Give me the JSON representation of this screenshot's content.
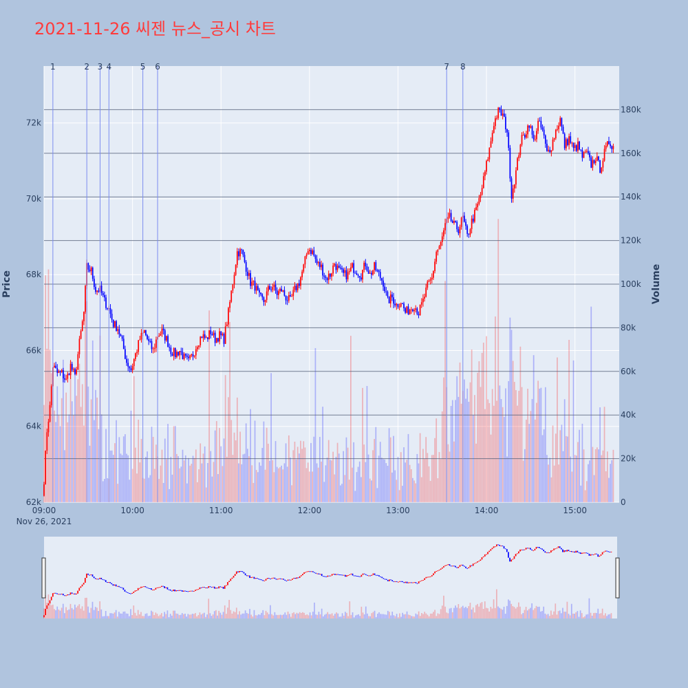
{
  "title": "2021-11-26 씨젠 뉴스_공시 차트",
  "colors": {
    "up": "#ff0000",
    "down": "#0000ff",
    "background": "#b0c4de",
    "plot": "#e5ecf6",
    "news_line": "#7b8cf0",
    "hline": "#55607a"
  },
  "chart_data": {
    "type": "candlestick",
    "date_label": "Nov 26, 2021",
    "x_ticks": [
      "09:00",
      "10:00",
      "11:00",
      "12:00",
      "13:00",
      "14:00",
      "15:00"
    ],
    "x_range": [
      "09:00",
      "15:30"
    ],
    "y_label": "Price",
    "y_ticks": [
      "62k",
      "64k",
      "66k",
      "68k",
      "70k",
      "72k"
    ],
    "y_range": [
      62000,
      73500
    ],
    "y2_label": "Volume",
    "y2_ticks": [
      "0",
      "20k",
      "40k",
      "60k",
      "80k",
      "100k",
      "120k",
      "140k",
      "160k",
      "180k"
    ],
    "y2_range": [
      0,
      200000
    ],
    "news_markers": [
      {
        "label": "1",
        "time": "09:06"
      },
      {
        "label": "2",
        "time": "09:29"
      },
      {
        "label": "3",
        "time": "09:38"
      },
      {
        "label": "4",
        "time": "09:44"
      },
      {
        "label": "5",
        "time": "10:07"
      },
      {
        "label": "6",
        "time": "10:17"
      },
      {
        "label": "7",
        "time": "13:33"
      },
      {
        "label": "8",
        "time": "13:44"
      }
    ],
    "volume_hlines": [
      20000,
      40000,
      60000,
      80000,
      100000,
      120000,
      140000,
      160000,
      180000
    ],
    "price_path": [
      [
        "09:00",
        62600
      ],
      [
        "09:02",
        63900
      ],
      [
        "09:04",
        64500
      ],
      [
        "09:06",
        65600
      ],
      [
        "09:09",
        65400
      ],
      [
        "09:12",
        65400
      ],
      [
        "09:15",
        65200
      ],
      [
        "09:18",
        65600
      ],
      [
        "09:21",
        65300
      ],
      [
        "09:24",
        66200
      ],
      [
        "09:27",
        67000
      ],
      [
        "09:29",
        68200
      ],
      [
        "09:32",
        68100
      ],
      [
        "09:35",
        67600
      ],
      [
        "09:38",
        67600
      ],
      [
        "09:41",
        67300
      ],
      [
        "09:44",
        67100
      ],
      [
        "09:47",
        66700
      ],
      [
        "09:50",
        66600
      ],
      [
        "09:53",
        66200
      ],
      [
        "09:56",
        65700
      ],
      [
        "09:59",
        65500
      ],
      [
        "10:02",
        65900
      ],
      [
        "10:05",
        66300
      ],
      [
        "10:08",
        66500
      ],
      [
        "10:11",
        66200
      ],
      [
        "10:14",
        66000
      ],
      [
        "10:17",
        66400
      ],
      [
        "10:20",
        66500
      ],
      [
        "10:23",
        66300
      ],
      [
        "10:26",
        66000
      ],
      [
        "10:29",
        65900
      ],
      [
        "10:32",
        66000
      ],
      [
        "10:35",
        65800
      ],
      [
        "10:38",
        65700
      ],
      [
        "10:41",
        65900
      ],
      [
        "10:44",
        66200
      ],
      [
        "10:47",
        66400
      ],
      [
        "10:50",
        66300
      ],
      [
        "10:53",
        66500
      ],
      [
        "10:56",
        66300
      ],
      [
        "10:59",
        66400
      ],
      [
        "11:02",
        66300
      ],
      [
        "11:05",
        67000
      ],
      [
        "11:08",
        67800
      ],
      [
        "11:11",
        68600
      ],
      [
        "11:14",
        68600
      ],
      [
        "11:17",
        68200
      ],
      [
        "11:20",
        67800
      ],
      [
        "11:23",
        67700
      ],
      [
        "11:26",
        67400
      ],
      [
        "11:29",
        67300
      ],
      [
        "11:32",
        67600
      ],
      [
        "11:35",
        67700
      ],
      [
        "11:38",
        67500
      ],
      [
        "11:41",
        67600
      ],
      [
        "11:44",
        67400
      ],
      [
        "11:47",
        67300
      ],
      [
        "11:50",
        67600
      ],
      [
        "11:53",
        67800
      ],
      [
        "11:56",
        68200
      ],
      [
        "11:59",
        68700
      ],
      [
        "12:02",
        68600
      ],
      [
        "12:05",
        68300
      ],
      [
        "12:08",
        68200
      ],
      [
        "12:11",
        67900
      ],
      [
        "12:14",
        68000
      ],
      [
        "12:17",
        68300
      ],
      [
        "12:20",
        68100
      ],
      [
        "12:23",
        68000
      ],
      [
        "12:26",
        68000
      ],
      [
        "12:29",
        68200
      ],
      [
        "12:32",
        68100
      ],
      [
        "12:35",
        68000
      ],
      [
        "12:38",
        68300
      ],
      [
        "12:41",
        68000
      ],
      [
        "12:44",
        68200
      ],
      [
        "12:47",
        68000
      ],
      [
        "12:50",
        67800
      ],
      [
        "12:53",
        67300
      ],
      [
        "12:56",
        67400
      ],
      [
        "12:59",
        67200
      ],
      [
        "13:02",
        67300
      ],
      [
        "13:05",
        67000
      ],
      [
        "13:08",
        67100
      ],
      [
        "13:11",
        67200
      ],
      [
        "13:14",
        67000
      ],
      [
        "13:17",
        67300
      ],
      [
        "13:20",
        67700
      ],
      [
        "13:23",
        67900
      ],
      [
        "13:26",
        68600
      ],
      [
        "13:29",
        68800
      ],
      [
        "13:32",
        69300
      ],
      [
        "13:35",
        69500
      ],
      [
        "13:38",
        69300
      ],
      [
        "13:41",
        69200
      ],
      [
        "13:44",
        69500
      ],
      [
        "13:47",
        69000
      ],
      [
        "13:50",
        69400
      ],
      [
        "13:53",
        69700
      ],
      [
        "13:56",
        70100
      ],
      [
        "13:59",
        70700
      ],
      [
        "14:02",
        71300
      ],
      [
        "14:05",
        72000
      ],
      [
        "14:08",
        72300
      ],
      [
        "14:11",
        72200
      ],
      [
        "14:14",
        71800
      ],
      [
        "14:17",
        70100
      ],
      [
        "14:20",
        70700
      ],
      [
        "14:23",
        71500
      ],
      [
        "14:26",
        71700
      ],
      [
        "14:29",
        72000
      ],
      [
        "14:32",
        71500
      ],
      [
        "14:35",
        72000
      ],
      [
        "14:38",
        71800
      ],
      [
        "14:41",
        71200
      ],
      [
        "14:44",
        71400
      ],
      [
        "14:47",
        71800
      ],
      [
        "14:50",
        72100
      ],
      [
        "14:53",
        71400
      ],
      [
        "14:56",
        71600
      ],
      [
        "14:59",
        71300
      ],
      [
        "15:02",
        71400
      ],
      [
        "15:05",
        71100
      ],
      [
        "15:08",
        71200
      ],
      [
        "15:11",
        70900
      ],
      [
        "15:14",
        71100
      ],
      [
        "15:17",
        70800
      ],
      [
        "15:20",
        71200
      ],
      [
        "15:23",
        71500
      ],
      [
        "15:26",
        71400
      ]
    ]
  }
}
